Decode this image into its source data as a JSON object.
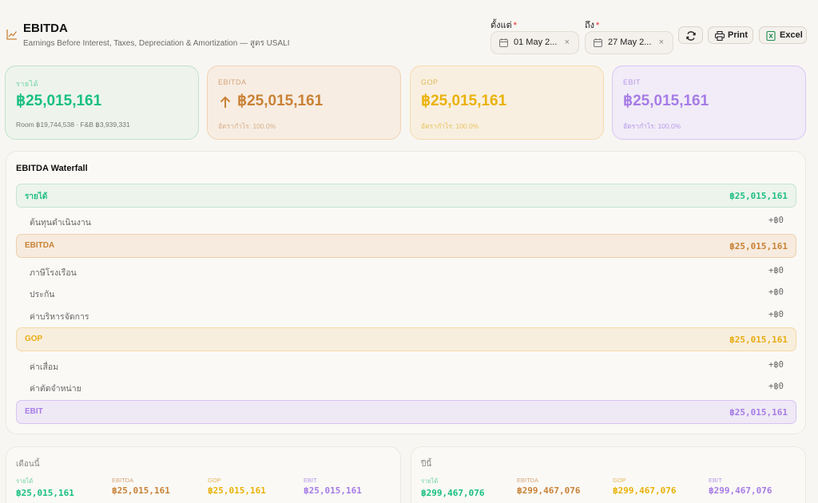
{
  "header": {
    "title": "EBITDA",
    "subtitle": "Earnings Before Interest, Taxes, Depreciation & Amortization — สูตร USALI",
    "from_label": "ตั้งแต่",
    "to_label": "ถึง",
    "required_mark": "*",
    "from_value": "01 May 2...",
    "to_value": "27 May 2...",
    "clear_glyph": "×",
    "print_label": "Print",
    "excel_label": "Excel"
  },
  "kpis": {
    "revenue": {
      "label": "รายได้",
      "value": "฿25,015,161",
      "note": "Room ฿19,744,538 · F&B ฿3,939,331"
    },
    "ebitda": {
      "label": "EBITDA",
      "value": "฿25,015,161",
      "note": "อัตรากำไร: 100.0%"
    },
    "gop": {
      "label": "GOP",
      "value": "฿25,015,161",
      "note": "อัตรากำไร: 100.0%"
    },
    "ebit": {
      "label": "EBIT",
      "value": "฿25,015,161",
      "note": "อัตรากำไร: 100.0%"
    }
  },
  "waterfall": {
    "title": "EBITDA Waterfall",
    "revenue": {
      "label": "รายได้",
      "value": "฿25,015,161"
    },
    "op_cost": {
      "label": "ต้นทุนดำเนินงาน",
      "value": "+฿0"
    },
    "ebitda": {
      "label": "EBITDA",
      "value": "฿25,015,161"
    },
    "property_tax": {
      "label": "ภาษีโรงเรือน",
      "value": "+฿0"
    },
    "insurance": {
      "label": "ประกัน",
      "value": "+฿0"
    },
    "mgmt_fee": {
      "label": "ค่าบริหารจัดการ",
      "value": "+฿0"
    },
    "gop": {
      "label": "GOP",
      "value": "฿25,015,161"
    },
    "depreciation": {
      "label": "ค่าเสื่อม",
      "value": "+฿0"
    },
    "amortization": {
      "label": "ค่าตัดจำหน่าย",
      "value": "+฿0"
    },
    "ebit": {
      "label": "EBIT",
      "value": "฿25,015,161"
    }
  },
  "month_card": {
    "title": "เดือนนี้",
    "revenue": {
      "label": "รายได้",
      "value": "฿25,015,161"
    },
    "ebitda": {
      "label": "EBITDA",
      "value": "฿25,015,161"
    },
    "gop": {
      "label": "GOP",
      "value": "฿25,015,161"
    },
    "ebit": {
      "label": "EBIT",
      "value": "฿25,015,161"
    }
  },
  "year_card": {
    "title": "ปีนี้",
    "revenue": {
      "label": "รายได้",
      "value": "฿299,467,076"
    },
    "ebitda": {
      "label": "EBITDA",
      "value": "฿299,467,076"
    },
    "gop": {
      "label": "GOP",
      "value": "฿299,467,076"
    },
    "ebit": {
      "label": "EBIT",
      "value": "฿299,467,076"
    }
  },
  "colors": {
    "revenue": "#19c07f",
    "ebitda": "#c98236",
    "gop": "#eab208",
    "ebit": "#a67ce6",
    "required": "#e0282e"
  },
  "icons": [
    "trend-chart-icon",
    "calendar-icon",
    "refresh-icon",
    "printer-icon",
    "excel-icon",
    "arrow-up-icon"
  ]
}
